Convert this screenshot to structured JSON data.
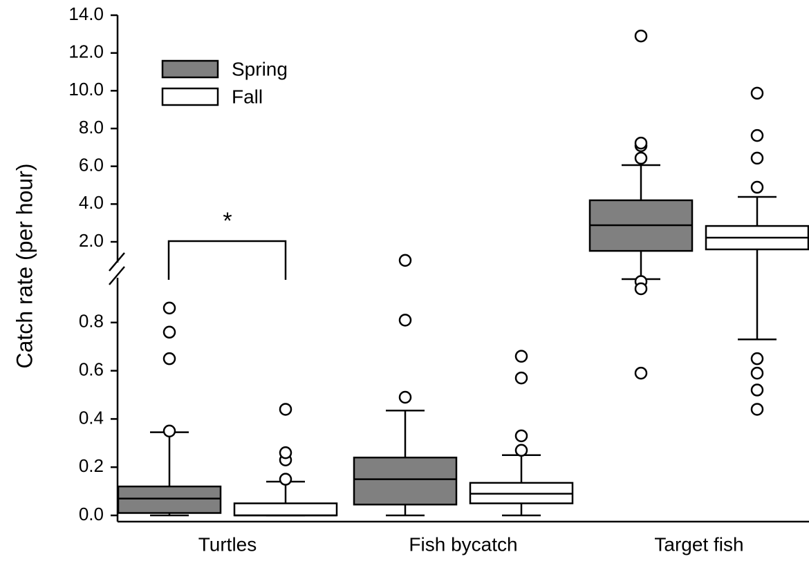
{
  "chart_data": {
    "type": "box",
    "y_label": "Catch rate (per hour)",
    "categories": [
      "Turtles",
      "Fish bycatch",
      "Target fish"
    ],
    "ylim": [
      0,
      14
    ],
    "ybreak": [
      0.98,
      1.5
    ],
    "yticks": [
      {
        "value": 0,
        "label": "0.0"
      },
      0.2,
      0.4,
      0.6,
      0.8,
      {
        "value": 2,
        "label": "2.0"
      },
      {
        "value": 4,
        "label": "4.0"
      },
      {
        "value": 6,
        "label": "6.0"
      },
      {
        "value": 8,
        "label": "8.0"
      },
      {
        "value": 10,
        "label": "10.0"
      },
      {
        "value": 12,
        "label": "12.0"
      },
      {
        "value": 14,
        "label": "14.0"
      }
    ],
    "series": [
      {
        "name": "Spring",
        "color": "#808080",
        "values": [
          {
            "min": 0,
            "q1": 0.01,
            "median": 0.07,
            "q3": 0.12,
            "max": 0.345,
            "outliers": [
              0.35,
              0.65,
              0.76,
              0.86
            ]
          },
          {
            "min": 0,
            "q1": 0.045,
            "median": 0.15,
            "q3": 0.24,
            "max": 0.435,
            "outliers": [
              0.49,
              0.81,
              1.33
            ]
          },
          {
            "min": 0.98,
            "q1": 1.52,
            "median": 2.88,
            "q3": 4.2,
            "max": 6.06,
            "outliers": [
              0.97,
              0.94,
              0.59,
              6.43,
              7.09,
              7.23,
              12.9
            ]
          }
        ]
      },
      {
        "name": "Fall",
        "color": "#ffffff",
        "values": [
          {
            "min": 0,
            "q1": 0,
            "median": 0,
            "q3": 0.05,
            "max": 0.14,
            "outliers": [
              0.15,
              0.23,
              0.26,
              0.44
            ]
          },
          {
            "min": 0,
            "q1": 0.05,
            "median": 0.09,
            "q3": 0.135,
            "max": 0.25,
            "outliers": [
              0.27,
              0.33,
              0.57,
              0.66
            ]
          },
          {
            "min": 0.73,
            "q1": 1.6,
            "median": 2.22,
            "q3": 2.84,
            "max": 4.38,
            "outliers": [
              0.65,
              0.59,
              0.52,
              0.44,
              4.89,
              6.43,
              7.63,
              9.87
            ]
          }
        ]
      }
    ],
    "annotation": "*"
  }
}
